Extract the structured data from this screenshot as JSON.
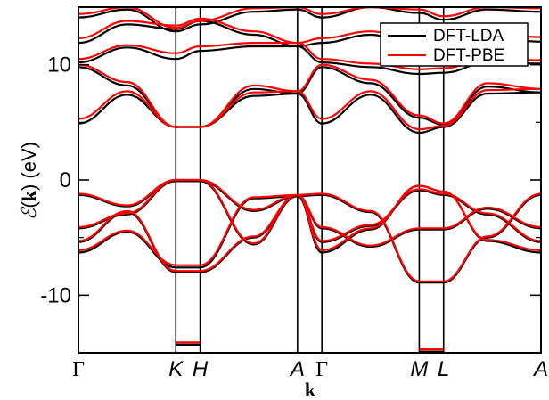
{
  "chart_data": {
    "type": "line",
    "title": "",
    "xlabel": "k",
    "ylabel": "ℰ(k) (eV)",
    "ylabel_parts": {
      "symbol": "ℰ",
      "paren_open": "(",
      "k": "k",
      "paren_close": ")",
      "unit": " (eV)"
    },
    "ylim": [
      -15,
      15
    ],
    "yticks": [
      -10,
      0,
      10
    ],
    "ytick_labels": [
      "-10",
      "0",
      "10"
    ],
    "kpath": [
      {
        "label": "Γ",
        "x": 0.0,
        "italic": false
      },
      {
        "label": "K",
        "x": 1.0,
        "italic": true
      },
      {
        "label": "H",
        "x": 1.25,
        "italic": true
      },
      {
        "label": "A",
        "x": 2.25,
        "italic": true
      },
      {
        "label": "Γ",
        "x": 2.5,
        "italic": false
      },
      {
        "label": "M",
        "x": 3.5,
        "italic": true
      },
      {
        "label": "L",
        "x": 3.75,
        "italic": true
      },
      {
        "label": "A",
        "x": 4.75,
        "italic": true
      }
    ],
    "xlim": [
      0,
      4.75
    ],
    "grid": false,
    "legend_position": "top-right",
    "series": [
      {
        "name": "DFT-LDA",
        "color": "#000000",
        "bands": [
          {
            "x": [
              0,
              0.5,
              1.0,
              1.25,
              1.8,
              2.25,
              2.5,
              3.0,
              3.5,
              3.75,
              4.2,
              4.75
            ],
            "y": [
              -6.3,
              -4.5,
              -7.6,
              -7.6,
              -1.6,
              -1.4,
              -6.3,
              -4.3,
              -0.5,
              -1.0,
              -5.3,
              -6.3
            ]
          },
          {
            "x": [
              0,
              0.5,
              1.0,
              1.25,
              1.8,
              2.25,
              2.5,
              3.0,
              3.5,
              3.75,
              4.2,
              4.75
            ],
            "y": [
              -5.4,
              -2.8,
              -8.0,
              -8.0,
              -5.0,
              -1.4,
              -5.4,
              -4.0,
              -0.9,
              -1.3,
              -3.0,
              -5.4
            ]
          },
          {
            "x": [
              0,
              0.5,
              1.0,
              1.25,
              1.8,
              2.25,
              2.5,
              3.0,
              3.5,
              3.75,
              4.2,
              4.75
            ],
            "y": [
              -4.2,
              -3.0,
              -0.1,
              -0.1,
              -5.6,
              -1.4,
              -4.2,
              -5.8,
              -4.3,
              -4.3,
              -2.5,
              -4.2
            ]
          },
          {
            "x": [
              0,
              0.5,
              1.0,
              1.25,
              1.8,
              2.25,
              2.5,
              3.0,
              3.5,
              3.75,
              4.2,
              4.75
            ],
            "y": [
              -1.3,
              -2.3,
              -0.1,
              -0.1,
              -2.7,
              -1.4,
              -1.3,
              -2.8,
              -8.9,
              -8.9,
              -5.0,
              -1.3
            ]
          },
          {
            "x": [
              0,
              0.5,
              1.0,
              1.25,
              1.8,
              2.25,
              2.5,
              3.0,
              3.5,
              3.75,
              4.2,
              4.75
            ],
            "y": [
              4.9,
              7.4,
              4.6,
              4.6,
              7.3,
              7.5,
              4.9,
              7.4,
              4.1,
              4.6,
              7.5,
              7.6
            ]
          },
          {
            "x": [
              0,
              0.5,
              1.0,
              1.25,
              1.8,
              2.25,
              2.5,
              3.0,
              3.5,
              3.75,
              4.2,
              4.75
            ],
            "y": [
              9.8,
              8.2,
              4.6,
              4.6,
              7.9,
              7.5,
              9.8,
              8.4,
              5.4,
              4.8,
              8.1,
              7.6
            ]
          },
          {
            "x": [
              0,
              0.5,
              1.0,
              1.25,
              1.8,
              2.25,
              2.5,
              3.0,
              3.5,
              3.75,
              4.2,
              4.75
            ],
            "y": [
              10.2,
              11.5,
              10.5,
              11.2,
              11.6,
              11.6,
              10.2,
              9.8,
              9.2,
              9.3,
              10.2,
              10.1
            ]
          },
          {
            "x": [
              0,
              0.5,
              1.0,
              1.25,
              1.8,
              2.25,
              2.5,
              3.0,
              3.5,
              3.75,
              4.2,
              4.75
            ],
            "y": [
              11.9,
              13.5,
              13.1,
              13.8,
              12.6,
              11.6,
              11.9,
              12.6,
              11.4,
              11.8,
              12.4,
              12.0
            ]
          },
          {
            "x": [
              0,
              0.5,
              1.0,
              1.25,
              1.8,
              2.25,
              2.5,
              3.0,
              3.5,
              3.75,
              4.2,
              4.75
            ],
            "y": [
              14.1,
              14.8,
              12.9,
              13.5,
              14.6,
              14.8,
              14.1,
              15.0,
              14.5,
              13.9,
              14.8,
              14.6
            ]
          },
          {
            "x": [
              1.0,
              1.25
            ],
            "y": [
              -14.3,
              -14.3
            ]
          },
          {
            "x": [
              3.5,
              3.75
            ],
            "y": [
              -14.9,
              -14.9
            ]
          }
        ]
      },
      {
        "name": "DFT-PBE",
        "color": "#ff0000",
        "bands": [
          {
            "x": [
              0,
              0.5,
              1.0,
              1.25,
              1.8,
              2.25,
              2.5,
              3.0,
              3.5,
              3.75,
              4.2,
              4.75
            ],
            "y": [
              -6.1,
              -4.4,
              -7.4,
              -7.4,
              -1.5,
              -1.3,
              -6.1,
              -4.2,
              -0.5,
              -1.0,
              -5.2,
              -6.1
            ]
          },
          {
            "x": [
              0,
              0.5,
              1.0,
              1.25,
              1.8,
              2.25,
              2.5,
              3.0,
              3.5,
              3.75,
              4.2,
              4.75
            ],
            "y": [
              -5.3,
              -2.7,
              -7.9,
              -7.9,
              -4.9,
              -1.3,
              -5.3,
              -3.9,
              -0.8,
              -1.2,
              -2.9,
              -5.3
            ]
          },
          {
            "x": [
              0,
              0.5,
              1.0,
              1.25,
              1.8,
              2.25,
              2.5,
              3.0,
              3.5,
              3.75,
              4.2,
              4.75
            ],
            "y": [
              -4.1,
              -2.9,
              0.0,
              0.0,
              -5.5,
              -1.3,
              -4.1,
              -5.7,
              -4.2,
              -4.2,
              -2.4,
              -4.1
            ]
          },
          {
            "x": [
              0,
              0.5,
              1.0,
              1.25,
              1.8,
              2.25,
              2.5,
              3.0,
              3.5,
              3.75,
              4.2,
              4.75
            ],
            "y": [
              -1.2,
              -2.2,
              0.0,
              0.0,
              -2.6,
              -1.3,
              -1.2,
              -2.7,
              -8.8,
              -8.8,
              -4.9,
              -1.2
            ]
          },
          {
            "x": [
              0,
              0.5,
              1.0,
              1.25,
              1.8,
              2.25,
              2.5,
              3.0,
              3.5,
              3.75,
              4.2,
              4.75
            ],
            "y": [
              5.3,
              7.7,
              4.6,
              4.6,
              7.6,
              7.7,
              5.3,
              7.7,
              4.4,
              4.7,
              7.8,
              7.9
            ]
          },
          {
            "x": [
              0,
              0.5,
              1.0,
              1.25,
              1.8,
              2.25,
              2.5,
              3.0,
              3.5,
              3.75,
              4.2,
              4.75
            ],
            "y": [
              10.0,
              8.5,
              4.6,
              4.6,
              8.2,
              7.7,
              10.0,
              8.7,
              5.6,
              4.9,
              8.4,
              7.9
            ]
          },
          {
            "x": [
              0,
              0.5,
              1.0,
              1.25,
              1.8,
              2.25,
              2.5,
              3.0,
              3.5,
              3.75,
              4.2,
              4.75
            ],
            "y": [
              10.5,
              11.7,
              11.0,
              11.6,
              11.9,
              11.9,
              10.5,
              10.1,
              9.6,
              9.7,
              10.5,
              10.4
            ]
          },
          {
            "x": [
              0,
              0.5,
              1.0,
              1.25,
              1.8,
              2.25,
              2.5,
              3.0,
              3.5,
              3.75,
              4.2,
              4.75
            ],
            "y": [
              12.3,
              13.8,
              13.4,
              14.0,
              12.9,
              11.9,
              12.3,
              12.9,
              11.8,
              12.1,
              12.7,
              12.4
            ]
          },
          {
            "x": [
              0,
              0.5,
              1.0,
              1.25,
              1.8,
              2.25,
              2.5,
              3.0,
              3.5,
              3.75,
              4.2,
              4.75
            ],
            "y": [
              14.4,
              15.0,
              13.2,
              13.8,
              14.9,
              15.0,
              14.4,
              15.0,
              14.8,
              14.2,
              15.0,
              14.9
            ]
          },
          {
            "x": [
              1.0,
              1.25
            ],
            "y": [
              -14.1,
              -14.1
            ]
          },
          {
            "x": [
              3.5,
              3.75
            ],
            "y": [
              -14.7,
              -14.7
            ]
          }
        ]
      }
    ]
  }
}
